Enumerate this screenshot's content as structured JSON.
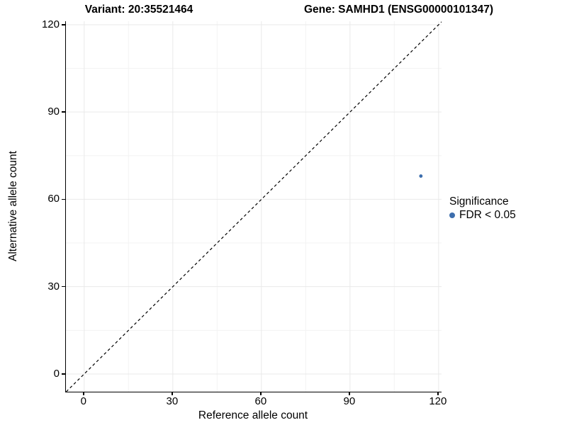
{
  "titles": {
    "variant": "Variant: 20:35521464",
    "gene": "Gene: SAMHD1 (ENSG00000101347)"
  },
  "axes": {
    "x_label": "Reference allele count",
    "y_label": "Alternative allele count"
  },
  "legend": {
    "title": "Significance",
    "items": [
      {
        "label": "FDR < 0.05",
        "color": "#3d6ead"
      }
    ]
  },
  "chart_data": {
    "type": "scatter",
    "title": "Variant: 20:35521464 | Gene: SAMHD1 (ENSG00000101347)",
    "xlabel": "Reference allele count",
    "ylabel": "Alternative allele count",
    "x_ticks": [
      0,
      30,
      60,
      90,
      120
    ],
    "y_ticks": [
      0,
      30,
      60,
      90,
      120
    ],
    "minor_ticks": [
      15,
      45,
      75,
      105
    ],
    "x_domain": [
      -6.2,
      121.0
    ],
    "y_domain": [
      -6.1,
      121.2
    ],
    "xlim": [
      0,
      120
    ],
    "ylim": [
      0,
      120
    ],
    "grid": true,
    "legend_position": "right",
    "series": [
      {
        "name": "FDR < 0.05",
        "points": [
          {
            "x": 114,
            "y": 68
          }
        ]
      }
    ],
    "reference_line": {
      "type": "identity y=x",
      "style": "dashed",
      "color": "#000000"
    },
    "colors": {
      "point": "#3d6ead",
      "grid_major": "#e9e9e9",
      "grid_minor": "#f3f3f3",
      "axis": "#000000",
      "diagonal": "#000000",
      "text": "#000000",
      "background": "#ffffff"
    }
  }
}
